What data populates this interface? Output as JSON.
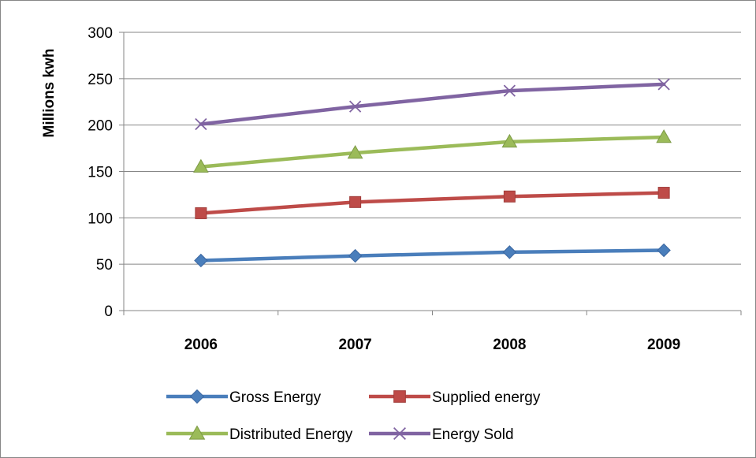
{
  "chart_data": {
    "type": "line",
    "title": "",
    "xlabel": "",
    "ylabel": "Millions kwh",
    "categories": [
      "2006",
      "2007",
      "2008",
      "2009"
    ],
    "ylim": [
      0,
      300
    ],
    "yticks": [
      0,
      50,
      100,
      150,
      200,
      250,
      300
    ],
    "grid": true,
    "legend_position": "bottom",
    "series": [
      {
        "name": "Gross Energy",
        "values": [
          54,
          59,
          63,
          65
        ],
        "color": "#4A7EBB",
        "marker": "diamond"
      },
      {
        "name": "Supplied energy",
        "values": [
          105,
          117,
          123,
          127
        ],
        "color": "#BE4B48",
        "marker": "square"
      },
      {
        "name": "Distributed Energy",
        "values": [
          155,
          170,
          182,
          187
        ],
        "color": "#9BBB59",
        "marker": "triangle"
      },
      {
        "name": "Energy Sold",
        "values": [
          201,
          220,
          237,
          244
        ],
        "color": "#8064A2",
        "marker": "x"
      }
    ]
  }
}
